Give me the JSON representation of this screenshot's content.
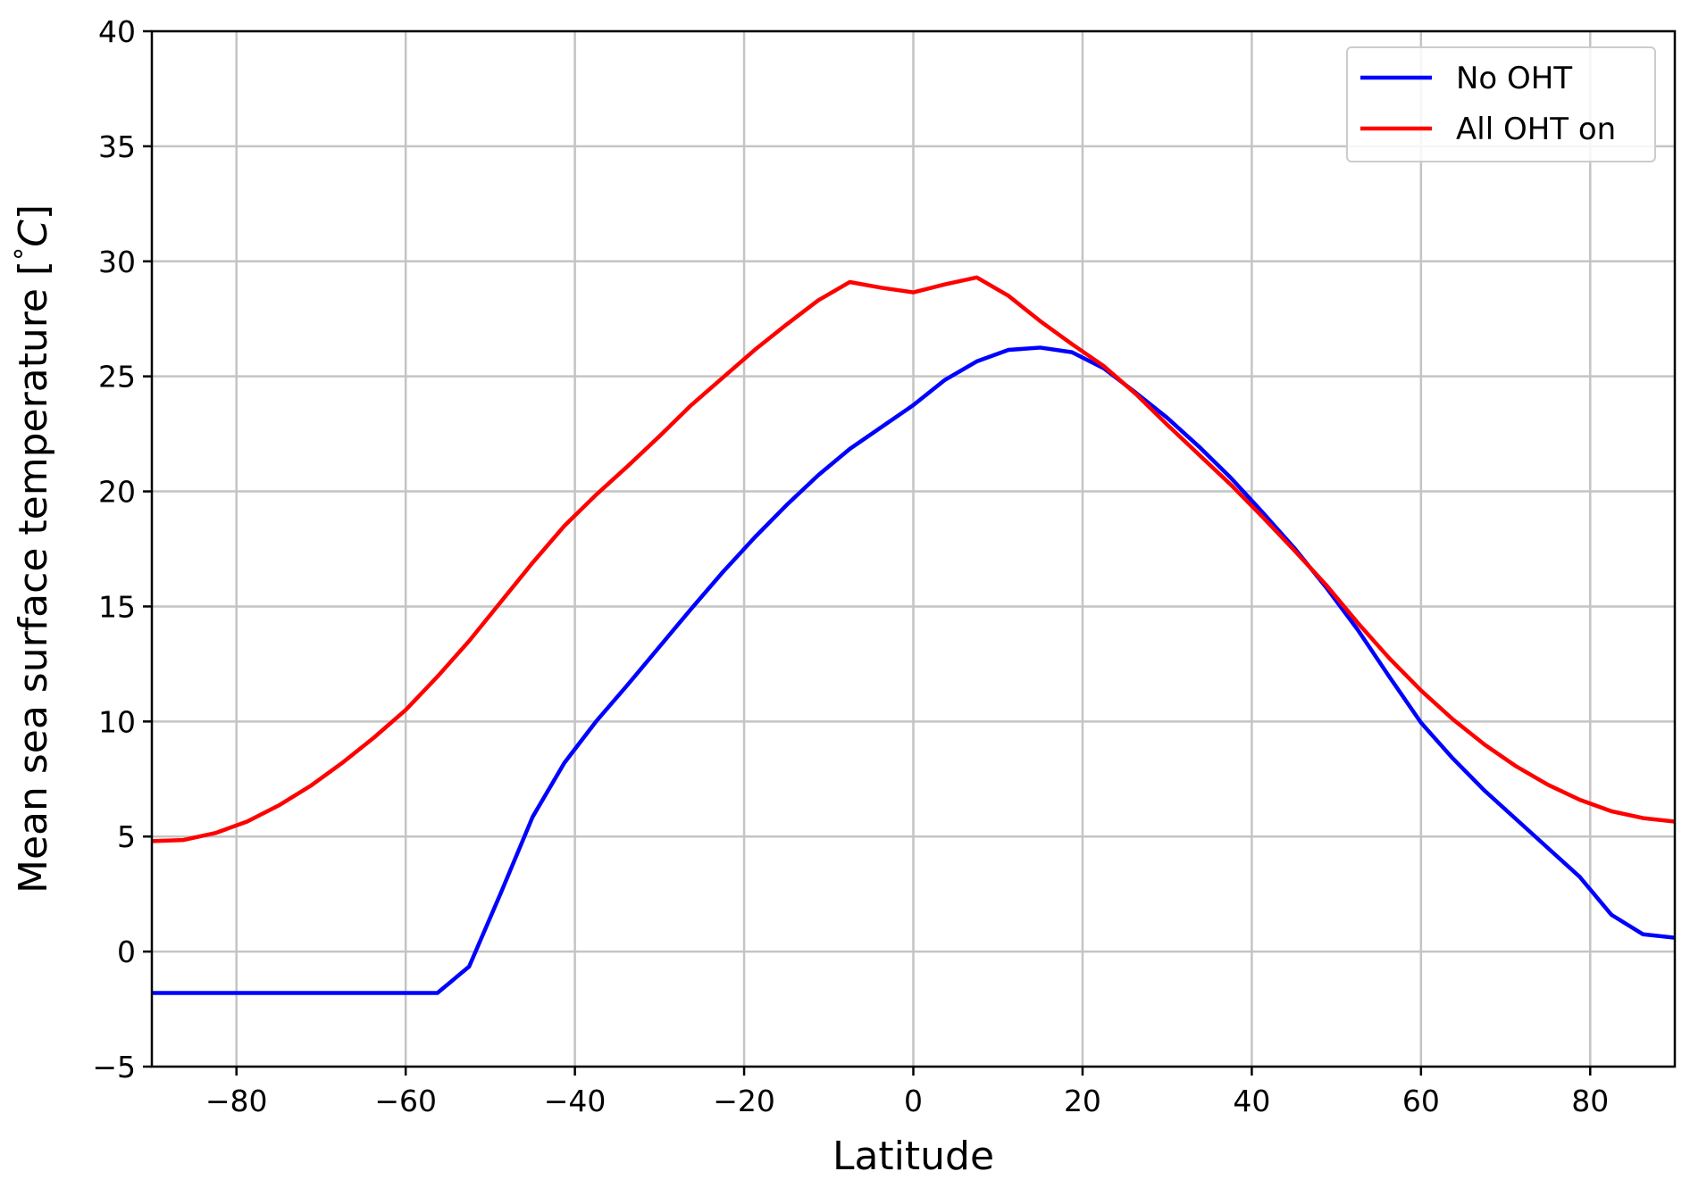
{
  "chart_data": {
    "type": "line",
    "title": "",
    "xlabel": "Latitude",
    "ylabel": {
      "main": "Mean sea surface temperature [",
      "degree": "°",
      "unit": "C",
      "close": "]"
    },
    "xlim": [
      -90,
      90
    ],
    "ylim": [
      -5,
      40
    ],
    "xticks": [
      -80,
      -60,
      -40,
      -20,
      0,
      20,
      40,
      60,
      80
    ],
    "xtick_labels": [
      "−80",
      "−60",
      "−40",
      "−20",
      "0",
      "20",
      "40",
      "60",
      "80"
    ],
    "yticks": [
      -5,
      0,
      5,
      10,
      15,
      20,
      25,
      30,
      35,
      40
    ],
    "ytick_labels": [
      "−5",
      "0",
      "5",
      "10",
      "15",
      "20",
      "25",
      "30",
      "35",
      "40"
    ],
    "grid": true,
    "legend_position": "top-right",
    "series": [
      {
        "name": "No OHT",
        "color": "#0000ff",
        "x": [
          -90,
          -86.25,
          -82.5,
          -78.75,
          -75,
          -71.25,
          -67.5,
          -63.75,
          -60,
          -56.25,
          -52.5,
          -48.75,
          -45,
          -41.25,
          -37.5,
          -33.75,
          -30,
          -26.25,
          -22.5,
          -18.75,
          -15,
          -11.25,
          -7.5,
          -3.75,
          0,
          3.75,
          7.5,
          11.25,
          15,
          18.75,
          22.5,
          26.25,
          30,
          33.75,
          37.5,
          41.25,
          45,
          48.75,
          52.5,
          56.25,
          60,
          63.75,
          67.5,
          71.25,
          75,
          78.75,
          82.5,
          86.25,
          90
        ],
        "y": [
          -1.8,
          -1.8,
          -1.8,
          -1.8,
          -1.8,
          -1.8,
          -1.8,
          -1.8,
          -1.8,
          -1.8,
          -0.65,
          2.55,
          5.85,
          8.2,
          10.0,
          11.6,
          13.25,
          14.9,
          16.5,
          18.0,
          19.4,
          20.7,
          21.85,
          22.8,
          23.75,
          24.85,
          25.65,
          26.15,
          26.25,
          26.05,
          25.35,
          24.3,
          23.2,
          21.95,
          20.6,
          19.1,
          17.55,
          15.85,
          14.0,
          11.95,
          9.95,
          8.4,
          7.0,
          5.75,
          4.5,
          3.25,
          1.6,
          0.75,
          0.6
        ]
      },
      {
        "name": "All OHT on",
        "color": "#ff0000",
        "x": [
          -90,
          -86.25,
          -82.5,
          -78.75,
          -75,
          -71.25,
          -67.5,
          -63.75,
          -60,
          -56.25,
          -52.5,
          -48.75,
          -45,
          -41.25,
          -37.5,
          -33.75,
          -30,
          -26.25,
          -22.5,
          -18.75,
          -15,
          -11.25,
          -7.5,
          -3.75,
          0,
          3.75,
          7.5,
          11.25,
          15,
          18.75,
          22.5,
          26.25,
          30,
          33.75,
          37.5,
          41.25,
          45,
          48.75,
          52.5,
          56.25,
          60,
          63.75,
          67.5,
          71.25,
          75,
          78.75,
          82.5,
          86.25,
          90
        ],
        "y": [
          4.8,
          4.85,
          5.15,
          5.65,
          6.35,
          7.2,
          8.2,
          9.3,
          10.5,
          11.95,
          13.5,
          15.2,
          16.9,
          18.5,
          19.85,
          21.1,
          22.4,
          23.75,
          24.95,
          26.15,
          27.25,
          28.3,
          29.1,
          28.85,
          28.65,
          29.0,
          29.3,
          28.5,
          27.4,
          26.4,
          25.45,
          24.25,
          22.9,
          21.6,
          20.3,
          18.9,
          17.45,
          15.95,
          14.3,
          12.75,
          11.35,
          10.1,
          9.0,
          8.05,
          7.25,
          6.6,
          6.1,
          5.8,
          5.65
        ]
      }
    ]
  }
}
